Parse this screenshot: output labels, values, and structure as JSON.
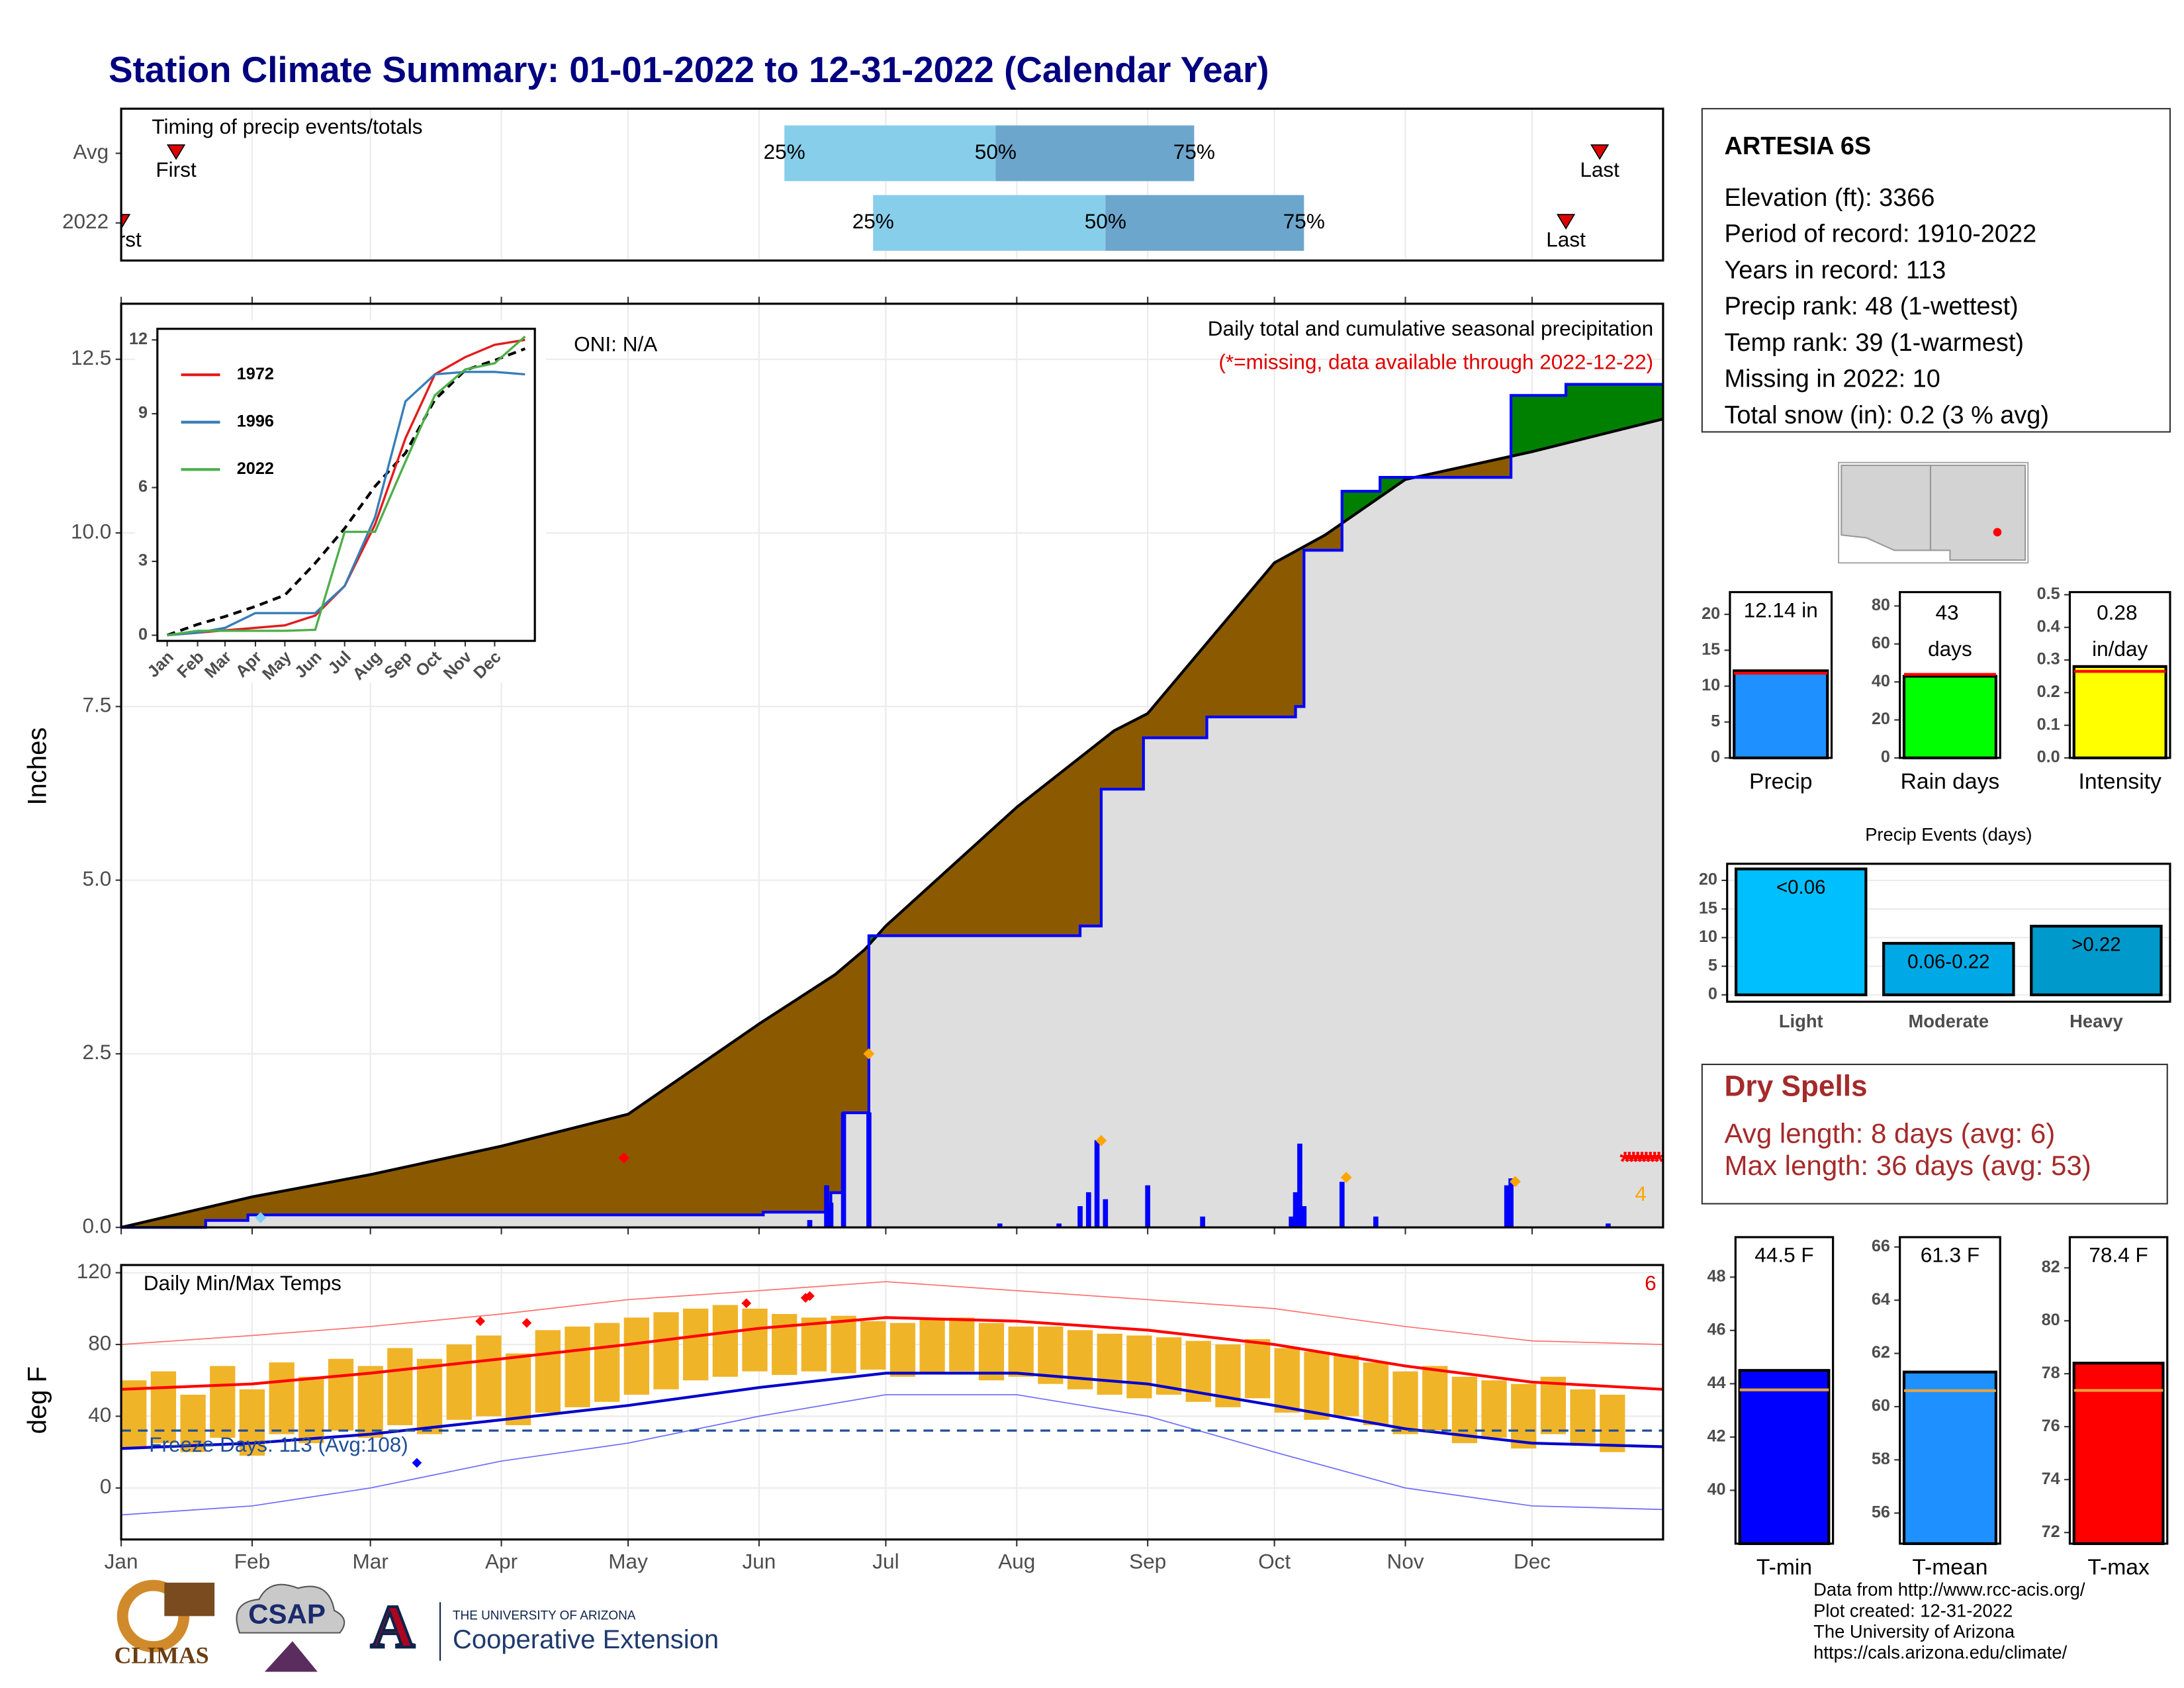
{
  "title": "Station Climate Summary: 01-01-2022 to 12-31-2022 (Calendar Year)",
  "station": {
    "name": "ARTESIA 6S",
    "lines": [
      "Elevation (ft): 3366",
      "Period of record: 1910-2022",
      "Years in record: 113",
      "Precip rank: 48 (1-wettest)",
      "Temp rank: 39 (1-warmest)",
      "Missing in 2022: 10",
      "Total snow (in): 0.2 (3 % avg)"
    ]
  },
  "dry_spells": {
    "title": "Dry Spells",
    "lines": [
      "Avg length: 8 days (avg: 6)",
      "Max length: 36 days (avg: 53)"
    ]
  },
  "footer": {
    "lines": [
      "Data from http://www.rcc-acis.org/",
      "Plot created: 12-31-2022",
      "The University of Arizona",
      "https://cals.arizona.edu/climate/"
    ]
  },
  "logos": {
    "climas": "CLIMAS",
    "csap": "CSAP",
    "university": "THE UNIVERSITY OF ARIZONA",
    "extension": "Cooperative Extension"
  },
  "chart_data": [
    {
      "type": "range",
      "title": "Timing of precip events/totals",
      "categories": [
        "Avg",
        "2022"
      ],
      "xlim": [
        0,
        365
      ],
      "xticks": [
        0,
        31,
        59,
        90,
        120,
        151,
        181,
        212,
        243,
        273,
        304,
        334
      ],
      "first": [
        13,
        0
      ],
      "last": [
        350,
        342
      ],
      "first_label": "First",
      "last_label": "Last",
      "marker_color": "#e00000",
      "quartiles": [
        [
          157,
          207,
          254
        ],
        [
          178,
          233,
          280
        ]
      ],
      "quartile_labels": [
        "25%",
        "50%",
        "75%"
      ],
      "colors": [
        "#87ceeb",
        "#6ca6cd"
      ]
    },
    {
      "type": "area",
      "title": "Daily total and cumulative seasonal precipitation",
      "subtitle": "(*=missing, data available through 2022-12-22)",
      "annotation": "ONI: N/A",
      "ylabel": "Inches",
      "xlim": [
        0,
        365
      ],
      "ylim": [
        0,
        13.3
      ],
      "xticks": [
        0,
        31,
        59,
        90,
        120,
        151,
        181,
        212,
        243,
        273,
        304,
        334
      ],
      "yticks": [
        {
          "value": 0,
          "label": "0.0"
        },
        {
          "value": 2.5,
          "label": "2.5"
        },
        {
          "value": 5,
          "label": "5.0"
        },
        {
          "value": 7.5,
          "label": "7.5"
        },
        {
          "value": 10,
          "label": "10.0"
        },
        {
          "value": 12.5,
          "label": "12.5"
        }
      ],
      "grid": true,
      "deficit_color": "#8b5a00",
      "surplus_color": "#008000",
      "base_color": "#dedede",
      "series": [
        {
          "name": "Average",
          "color": "#000000",
          "x": [
            0,
            31,
            59,
            90,
            120,
            151,
            169,
            176,
            181,
            212,
            235,
            243,
            273,
            285,
            304,
            334,
            365
          ],
          "values": [
            0,
            0.44,
            0.76,
            1.17,
            1.63,
            2.93,
            3.64,
            4.0,
            4.34,
            6.05,
            7.15,
            7.4,
            9.57,
            9.97,
            10.77,
            11.17,
            11.64
          ]
        },
        {
          "name": "2022",
          "color": "#0000ff",
          "x": [
            0,
            20,
            20,
            30,
            30,
            152,
            152,
            168,
            168,
            171,
            171,
            177,
            177,
            227,
            227,
            232,
            232,
            242,
            242,
            257,
            257,
            278,
            278,
            280,
            280,
            289,
            289,
            298,
            298,
            329,
            329,
            342,
            342,
            365
          ],
          "values": [
            0,
            0,
            0.1,
            0.1,
            0.18,
            0.18,
            0.22,
            0.22,
            0.5,
            0.5,
            1.65,
            1.65,
            4.2,
            4.2,
            4.34,
            4.34,
            6.31,
            6.31,
            7.05,
            7.05,
            7.35,
            7.35,
            7.5,
            7.5,
            9.75,
            9.75,
            10.6,
            10.6,
            10.8,
            10.8,
            11.98,
            11.98,
            12.14,
            12.14
          ]
        }
      ],
      "daily": {
        "color": "#0000ff",
        "x": [
          163,
          167,
          168,
          171,
          177,
          208,
          222,
          227,
          229,
          231,
          233,
          243,
          256,
          277,
          278,
          279,
          280,
          289,
          297,
          328,
          329,
          352
        ],
        "values": [
          0.1,
          0.6,
          0.35,
          1.65,
          1.65,
          0.05,
          0.05,
          0.3,
          0.5,
          1.25,
          0.4,
          0.6,
          0.15,
          0.15,
          0.5,
          1.2,
          0.3,
          0.65,
          0.15,
          0.6,
          0.7,
          0.05
        ]
      },
      "max_markers": {
        "color": "#ffa500",
        "x": [
          177,
          232,
          290,
          330
        ],
        "values": [
          2.5,
          1.25,
          0.72,
          0.66
        ]
      },
      "extreme_count": 4,
      "record_markers": {
        "color": "#ff0000",
        "x": [
          119
        ],
        "values": [
          1.0
        ]
      },
      "snow_markers": {
        "color": "#87cefa",
        "x": [
          33
        ],
        "values": [
          0.14
        ]
      },
      "missing": {
        "symbol": "*",
        "color": "#ff0000",
        "x": [
          356,
          357,
          358,
          359,
          360,
          361,
          362,
          363,
          364
        ],
        "values": [
          1,
          1,
          1,
          1,
          1,
          1,
          1,
          1,
          1
        ]
      }
    },
    {
      "type": "line",
      "xlim": [
        -10,
        375
      ],
      "ylim": [
        -0.23,
        12.45
      ],
      "yticks": [
        0,
        3,
        6,
        9,
        12
      ],
      "xticks": [
        {
          "value": 0,
          "label": "Jan"
        },
        {
          "value": 31,
          "label": "Feb"
        },
        {
          "value": 59,
          "label": "Mar"
        },
        {
          "value": 90,
          "label": "Apr"
        },
        {
          "value": 120,
          "label": "May"
        },
        {
          "value": 151,
          "label": "Jun"
        },
        {
          "value": 181,
          "label": "Jul"
        },
        {
          "value": 212,
          "label": "Aug"
        },
        {
          "value": 243,
          "label": "Sep"
        },
        {
          "value": 273,
          "label": "Oct"
        },
        {
          "value": 304,
          "label": "Nov"
        },
        {
          "value": 334,
          "label": "Dec"
        }
      ],
      "x": [
        0,
        31,
        59,
        90,
        120,
        151,
        181,
        212,
        243,
        273,
        304,
        334,
        365
      ],
      "average": {
        "color": "#000000",
        "values": [
          0,
          0.44,
          0.76,
          1.17,
          1.63,
          2.93,
          4.34,
          6.05,
          7.4,
          9.57,
          10.77,
          11.17,
          11.64
        ]
      },
      "series": [
        {
          "name": "1972",
          "color": "#e41a1c",
          "values": [
            0,
            0.1,
            0.2,
            0.3,
            0.4,
            0.8,
            2.0,
            4.5,
            8.0,
            10.6,
            11.3,
            11.8,
            12.0
          ]
        },
        {
          "name": "1996",
          "color": "#377eb8",
          "values": [
            0,
            0.1,
            0.3,
            0.9,
            0.9,
            0.9,
            2.0,
            4.8,
            9.5,
            10.6,
            10.7,
            10.7,
            10.6
          ]
        },
        {
          "name": "2022",
          "color": "#4daf4a",
          "values": [
            0,
            0.18,
            0.18,
            0.18,
            0.18,
            0.22,
            4.2,
            4.2,
            7.05,
            9.75,
            10.8,
            11.05,
            12.14
          ]
        }
      ]
    },
    {
      "type": "temps",
      "title": "Daily Min/Max Temps",
      "annotation": "Freeze Days: 113 (Avg:108)",
      "ylabel": "deg F",
      "extreme_count": 6,
      "xlim": [
        0,
        365
      ],
      "ylim": [
        -28.7,
        124.3
      ],
      "yticks": [
        0,
        40,
        80,
        120
      ],
      "grid": true,
      "xticks": [
        {
          "value": 0,
          "label": "Jan"
        },
        {
          "value": 31,
          "label": "Feb"
        },
        {
          "value": 59,
          "label": "Mar"
        },
        {
          "value": 90,
          "label": "Apr"
        },
        {
          "value": 120,
          "label": "May"
        },
        {
          "value": 151,
          "label": "Jun"
        },
        {
          "value": 181,
          "label": "Jul"
        },
        {
          "value": 212,
          "label": "Aug"
        },
        {
          "value": 243,
          "label": "Sep"
        },
        {
          "value": 273,
          "label": "Oct"
        },
        {
          "value": 304,
          "label": "Nov"
        },
        {
          "value": 334,
          "label": "Dec"
        }
      ],
      "freeze": 32,
      "freeze_color": "#1f4e99",
      "normals_x": [
        0,
        31,
        59,
        90,
        120,
        151,
        181,
        212,
        243,
        273,
        304,
        334,
        365
      ],
      "normal_max": {
        "color": "#ff0000",
        "values": [
          55,
          58,
          64,
          72,
          80,
          89,
          95,
          93,
          88,
          80,
          68,
          59,
          55
        ]
      },
      "normal_min": {
        "color": "#0000cd",
        "values": [
          22,
          25,
          30,
          38,
          46,
          56,
          64,
          64,
          58,
          46,
          33,
          25,
          23
        ]
      },
      "record_max": {
        "color": "#ff7070",
        "values": [
          80,
          85,
          90,
          97,
          105,
          110,
          115,
          110,
          105,
          100,
          90,
          82,
          80
        ]
      },
      "record_min": {
        "color": "#6a6aff",
        "values": [
          -15,
          -10,
          0,
          15,
          25,
          40,
          52,
          52,
          40,
          20,
          0,
          -10,
          -12
        ]
      },
      "daily": {
        "color": "#f0b429",
        "x": [
          3,
          10,
          17,
          24,
          31,
          38,
          45,
          52,
          59,
          66,
          73,
          80,
          87,
          94,
          101,
          108,
          115,
          122,
          129,
          136,
          143,
          150,
          157,
          164,
          171,
          178,
          185,
          192,
          199,
          206,
          213,
          220,
          227,
          234,
          241,
          248,
          255,
          262,
          269,
          276,
          283,
          290,
          297,
          304,
          311,
          318,
          325,
          332,
          339,
          346,
          353
        ],
        "min": [
          22,
          25,
          20,
          28,
          18,
          30,
          25,
          32,
          28,
          35,
          30,
          38,
          40,
          35,
          42,
          45,
          48,
          52,
          55,
          60,
          62,
          65,
          63,
          65,
          64,
          66,
          62,
          64,
          65,
          60,
          62,
          58,
          55,
          52,
          50,
          52,
          48,
          45,
          50,
          42,
          38,
          40,
          35,
          30,
          32,
          25,
          28,
          22,
          30,
          25,
          20
        ],
        "max": [
          60,
          65,
          52,
          68,
          55,
          70,
          62,
          72,
          68,
          78,
          72,
          80,
          85,
          75,
          88,
          90,
          92,
          95,
          98,
          100,
          102,
          100,
          97,
          95,
          96,
          93,
          92,
          94,
          95,
          92,
          90,
          90,
          88,
          86,
          85,
          84,
          82,
          80,
          83,
          78,
          76,
          74,
          70,
          65,
          68,
          62,
          60,
          58,
          62,
          55,
          52
        ]
      },
      "record_highs": {
        "color": "#ff0000",
        "x": [
          85,
          96,
          148,
          162,
          163
        ],
        "values": [
          93,
          92,
          103,
          106,
          107
        ]
      },
      "record_lows": {
        "color": "#0000ff",
        "x": [
          70
        ],
        "values": [
          14
        ]
      }
    },
    {
      "type": "bar",
      "categories": [
        "Precip"
      ],
      "values": [
        12.14
      ],
      "value_labels": [
        "12.14 in"
      ],
      "color": "#1e90ff",
      "average": [
        11.8
      ],
      "average_color": "#ff0000",
      "ylim": [
        0,
        23.1
      ],
      "yticks": [
        0,
        5,
        10,
        15,
        20
      ]
    },
    {
      "type": "bar",
      "categories": [
        "Rain days"
      ],
      "values": [
        43
      ],
      "value_labels": [
        "43 days"
      ],
      "color": "#00ff00",
      "average": [
        44
      ],
      "average_color": "#ff0000",
      "ylim": [
        0,
        87.3
      ],
      "yticks": [
        0,
        20,
        40,
        60,
        80
      ]
    },
    {
      "type": "bar",
      "categories": [
        "Intensity"
      ],
      "values": [
        0.28
      ],
      "value_labels": [
        "0.28 in/day"
      ],
      "color": "#ffff00",
      "average": [
        0.265
      ],
      "average_color": "#ff0000",
      "ylim": [
        0,
        0.508
      ],
      "yticks": [
        {
          "value": 0,
          "label": "0.0"
        },
        0.1,
        0.2,
        0.3,
        0.4,
        0.5
      ]
    },
    {
      "type": "bar",
      "title": "Precip Events (days)",
      "categories": [
        "Light",
        "Moderate",
        "Heavy"
      ],
      "values": [
        22,
        9,
        12
      ],
      "value_labels": [
        "<0.06",
        "0.06-0.22",
        ">0.22"
      ],
      "colors": [
        "#00bfff",
        "#00a9e6",
        "#0099cc"
      ],
      "ylim": [
        -1.2,
        22.9
      ],
      "yticks": [
        0,
        5,
        10,
        15,
        20
      ],
      "grid": true
    },
    {
      "type": "bar",
      "categories": [
        "T-min"
      ],
      "values": [
        44.5
      ],
      "value_labels": [
        "44.5 F"
      ],
      "color": "#0000ff",
      "average": [
        43.77
      ],
      "average_color": "#e8a33d",
      "ylim": [
        38.0,
        49.5
      ],
      "yticks": [
        40,
        42,
        44,
        46,
        48
      ]
    },
    {
      "type": "bar",
      "categories": [
        "T-mean"
      ],
      "values": [
        61.3
      ],
      "value_labels": [
        "61.3 F"
      ],
      "color": "#1e90ff",
      "average": [
        60.6
      ],
      "average_color": "#e8a33d",
      "ylim": [
        54.85,
        66.37
      ],
      "yticks": [
        56,
        58,
        60,
        62,
        64,
        66
      ]
    },
    {
      "type": "bar",
      "categories": [
        "T-max"
      ],
      "values": [
        78.4
      ],
      "value_labels": [
        "78.4 F"
      ],
      "color": "#ff0000",
      "average": [
        77.37
      ],
      "average_color": "#e8a33d",
      "ylim": [
        71.58,
        83.16
      ],
      "yticks": [
        72,
        74,
        76,
        78,
        80,
        82
      ]
    }
  ]
}
